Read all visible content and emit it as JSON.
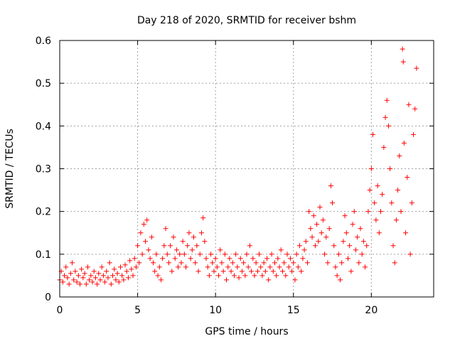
{
  "chart_data": {
    "type": "scatter",
    "title": "Day 218 of 2020, SRMTID for receiver bshm",
    "xlabel": "GPS time / hours",
    "ylabel": "SRMTID / TECUs",
    "xlim": [
      0,
      24
    ],
    "ylim": [
      0,
      0.6
    ],
    "xticks": [
      0,
      5,
      10,
      15,
      20
    ],
    "xtick_labels": [
      "0",
      "5",
      "10",
      "15",
      "20"
    ],
    "yticks": [
      0,
      0.1,
      0.2,
      0.3,
      0.4,
      0.5,
      0.6
    ],
    "ytick_labels": [
      "0",
      "0.1",
      "0.2",
      "0.3",
      "0.4",
      "0.5",
      "0.6"
    ],
    "grid": true,
    "marker": "+",
    "color": "#ff0000",
    "series": [
      {
        "name": "bshm",
        "points": [
          [
            0.0,
            0.04
          ],
          [
            0.1,
            0.06
          ],
          [
            0.2,
            0.035
          ],
          [
            0.3,
            0.05
          ],
          [
            0.4,
            0.07
          ],
          [
            0.5,
            0.045
          ],
          [
            0.6,
            0.03
          ],
          [
            0.7,
            0.055
          ],
          [
            0.8,
            0.08
          ],
          [
            0.9,
            0.04
          ],
          [
            1.0,
            0.06
          ],
          [
            1.1,
            0.035
          ],
          [
            1.2,
            0.05
          ],
          [
            1.3,
            0.03
          ],
          [
            1.4,
            0.065
          ],
          [
            1.5,
            0.045
          ],
          [
            1.6,
            0.055
          ],
          [
            1.7,
            0.03
          ],
          [
            1.8,
            0.07
          ],
          [
            1.9,
            0.04
          ],
          [
            2.0,
            0.05
          ],
          [
            2.1,
            0.035
          ],
          [
            2.2,
            0.06
          ],
          [
            2.3,
            0.045
          ],
          [
            2.4,
            0.03
          ],
          [
            2.5,
            0.055
          ],
          [
            2.6,
            0.04
          ],
          [
            2.7,
            0.07
          ],
          [
            2.8,
            0.05
          ],
          [
            2.9,
            0.035
          ],
          [
            3.0,
            0.06
          ],
          [
            3.1,
            0.045
          ],
          [
            3.2,
            0.08
          ],
          [
            3.3,
            0.03
          ],
          [
            3.4,
            0.05
          ],
          [
            3.5,
            0.065
          ],
          [
            3.6,
            0.04
          ],
          [
            3.7,
            0.055
          ],
          [
            3.8,
            0.035
          ],
          [
            3.9,
            0.07
          ],
          [
            4.0,
            0.05
          ],
          [
            4.1,
            0.04
          ],
          [
            4.2,
            0.075
          ],
          [
            4.3,
            0.06
          ],
          [
            4.4,
            0.045
          ],
          [
            4.5,
            0.085
          ],
          [
            4.6,
            0.065
          ],
          [
            4.7,
            0.05
          ],
          [
            4.8,
            0.09
          ],
          [
            4.9,
            0.07
          ],
          [
            5.0,
            0.12
          ],
          [
            5.1,
            0.08
          ],
          [
            5.2,
            0.15
          ],
          [
            5.3,
            0.1
          ],
          [
            5.4,
            0.17
          ],
          [
            5.5,
            0.13
          ],
          [
            5.6,
            0.18
          ],
          [
            5.7,
            0.11
          ],
          [
            5.8,
            0.09
          ],
          [
            5.9,
            0.14
          ],
          [
            6.0,
            0.08
          ],
          [
            6.1,
            0.06
          ],
          [
            6.2,
            0.1
          ],
          [
            6.3,
            0.05
          ],
          [
            6.4,
            0.07
          ],
          [
            6.5,
            0.04
          ],
          [
            6.6,
            0.09
          ],
          [
            6.7,
            0.12
          ],
          [
            6.8,
            0.16
          ],
          [
            6.9,
            0.1
          ],
          [
            7.0,
            0.08
          ],
          [
            7.1,
            0.12
          ],
          [
            7.2,
            0.06
          ],
          [
            7.3,
            0.14
          ],
          [
            7.4,
            0.09
          ],
          [
            7.5,
            0.11
          ],
          [
            7.6,
            0.07
          ],
          [
            7.7,
            0.1
          ],
          [
            7.8,
            0.08
          ],
          [
            7.9,
            0.13
          ],
          [
            8.0,
            0.1
          ],
          [
            8.1,
            0.07
          ],
          [
            8.2,
            0.12
          ],
          [
            8.3,
            0.15
          ],
          [
            8.4,
            0.09
          ],
          [
            8.5,
            0.11
          ],
          [
            8.6,
            0.14
          ],
          [
            8.7,
            0.08
          ],
          [
            8.8,
            0.12
          ],
          [
            8.9,
            0.06
          ],
          [
            9.0,
            0.1
          ],
          [
            9.1,
            0.15
          ],
          [
            9.2,
            0.185
          ],
          [
            9.3,
            0.13
          ],
          [
            9.4,
            0.09
          ],
          [
            9.5,
            0.07
          ],
          [
            9.6,
            0.05
          ],
          [
            9.7,
            0.1
          ],
          [
            9.8,
            0.08
          ],
          [
            9.9,
            0.06
          ],
          [
            10.0,
            0.09
          ],
          [
            10.1,
            0.07
          ],
          [
            10.2,
            0.05
          ],
          [
            10.3,
            0.11
          ],
          [
            10.4,
            0.08
          ],
          [
            10.5,
            0.06
          ],
          [
            10.6,
            0.1
          ],
          [
            10.7,
            0.04
          ],
          [
            10.8,
            0.07
          ],
          [
            10.9,
            0.09
          ],
          [
            11.0,
            0.06
          ],
          [
            11.1,
            0.08
          ],
          [
            11.2,
            0.05
          ],
          [
            11.3,
            0.1
          ],
          [
            11.4,
            0.07
          ],
          [
            11.5,
            0.045
          ],
          [
            11.6,
            0.09
          ],
          [
            11.7,
            0.06
          ],
          [
            11.8,
            0.08
          ],
          [
            11.9,
            0.05
          ],
          [
            12.0,
            0.1
          ],
          [
            12.1,
            0.07
          ],
          [
            12.2,
            0.12
          ],
          [
            12.3,
            0.06
          ],
          [
            12.4,
            0.09
          ],
          [
            12.5,
            0.05
          ],
          [
            12.6,
            0.08
          ],
          [
            12.7,
            0.06
          ],
          [
            12.8,
            0.1
          ],
          [
            12.9,
            0.07
          ],
          [
            13.0,
            0.05
          ],
          [
            13.1,
            0.08
          ],
          [
            13.2,
            0.06
          ],
          [
            13.3,
            0.09
          ],
          [
            13.4,
            0.04
          ],
          [
            13.5,
            0.07
          ],
          [
            13.6,
            0.1
          ],
          [
            13.7,
            0.06
          ],
          [
            13.8,
            0.08
          ],
          [
            13.9,
            0.05
          ],
          [
            14.0,
            0.09
          ],
          [
            14.1,
            0.07
          ],
          [
            14.2,
            0.11
          ],
          [
            14.3,
            0.06
          ],
          [
            14.4,
            0.08
          ],
          [
            14.5,
            0.05
          ],
          [
            14.6,
            0.1
          ],
          [
            14.7,
            0.07
          ],
          [
            14.8,
            0.09
          ],
          [
            14.9,
            0.06
          ],
          [
            15.0,
            0.08
          ],
          [
            15.1,
            0.04
          ],
          [
            15.2,
            0.1
          ],
          [
            15.3,
            0.07
          ],
          [
            15.4,
            0.12
          ],
          [
            15.5,
            0.06
          ],
          [
            15.6,
            0.09
          ],
          [
            15.7,
            0.11
          ],
          [
            15.8,
            0.13
          ],
          [
            15.9,
            0.08
          ],
          [
            16.0,
            0.2
          ],
          [
            16.1,
            0.16
          ],
          [
            16.2,
            0.14
          ],
          [
            16.3,
            0.19
          ],
          [
            16.4,
            0.12
          ],
          [
            16.5,
            0.17
          ],
          [
            16.6,
            0.13
          ],
          [
            16.7,
            0.21
          ],
          [
            16.8,
            0.15
          ],
          [
            16.9,
            0.18
          ],
          [
            17.0,
            0.1
          ],
          [
            17.1,
            0.14
          ],
          [
            17.2,
            0.08
          ],
          [
            17.3,
            0.16
          ],
          [
            17.4,
            0.26
          ],
          [
            17.5,
            0.22
          ],
          [
            17.6,
            0.12
          ],
          [
            17.7,
            0.07
          ],
          [
            17.8,
            0.05
          ],
          [
            17.9,
            0.1
          ],
          [
            18.0,
            0.04
          ],
          [
            18.1,
            0.08
          ],
          [
            18.2,
            0.13
          ],
          [
            18.3,
            0.19
          ],
          [
            18.4,
            0.15
          ],
          [
            18.5,
            0.09
          ],
          [
            18.6,
            0.12
          ],
          [
            18.7,
            0.06
          ],
          [
            18.8,
            0.17
          ],
          [
            18.9,
            0.2
          ],
          [
            19.0,
            0.11
          ],
          [
            19.1,
            0.14
          ],
          [
            19.2,
            0.08
          ],
          [
            19.3,
            0.16
          ],
          [
            19.4,
            0.1
          ],
          [
            19.5,
            0.13
          ],
          [
            19.6,
            0.07
          ],
          [
            19.7,
            0.12
          ],
          [
            19.8,
            0.2
          ],
          [
            19.9,
            0.25
          ],
          [
            20.0,
            0.3
          ],
          [
            20.1,
            0.38
          ],
          [
            20.2,
            0.22
          ],
          [
            20.3,
            0.18
          ],
          [
            20.4,
            0.26
          ],
          [
            20.5,
            0.15
          ],
          [
            20.6,
            0.2
          ],
          [
            20.7,
            0.24
          ],
          [
            20.8,
            0.35
          ],
          [
            20.9,
            0.42
          ],
          [
            21.0,
            0.46
          ],
          [
            21.1,
            0.4
          ],
          [
            21.2,
            0.3
          ],
          [
            21.3,
            0.22
          ],
          [
            21.4,
            0.12
          ],
          [
            21.5,
            0.08
          ],
          [
            21.6,
            0.18
          ],
          [
            21.7,
            0.25
          ],
          [
            21.8,
            0.33
          ],
          [
            21.9,
            0.2
          ],
          [
            22.0,
            0.58
          ],
          [
            22.05,
            0.55
          ],
          [
            22.1,
            0.36
          ],
          [
            22.2,
            0.15
          ],
          [
            22.3,
            0.28
          ],
          [
            22.4,
            0.45
          ],
          [
            22.5,
            0.1
          ],
          [
            22.6,
            0.22
          ],
          [
            22.7,
            0.38
          ],
          [
            22.8,
            0.44
          ],
          [
            22.9,
            0.535
          ]
        ]
      }
    ]
  }
}
